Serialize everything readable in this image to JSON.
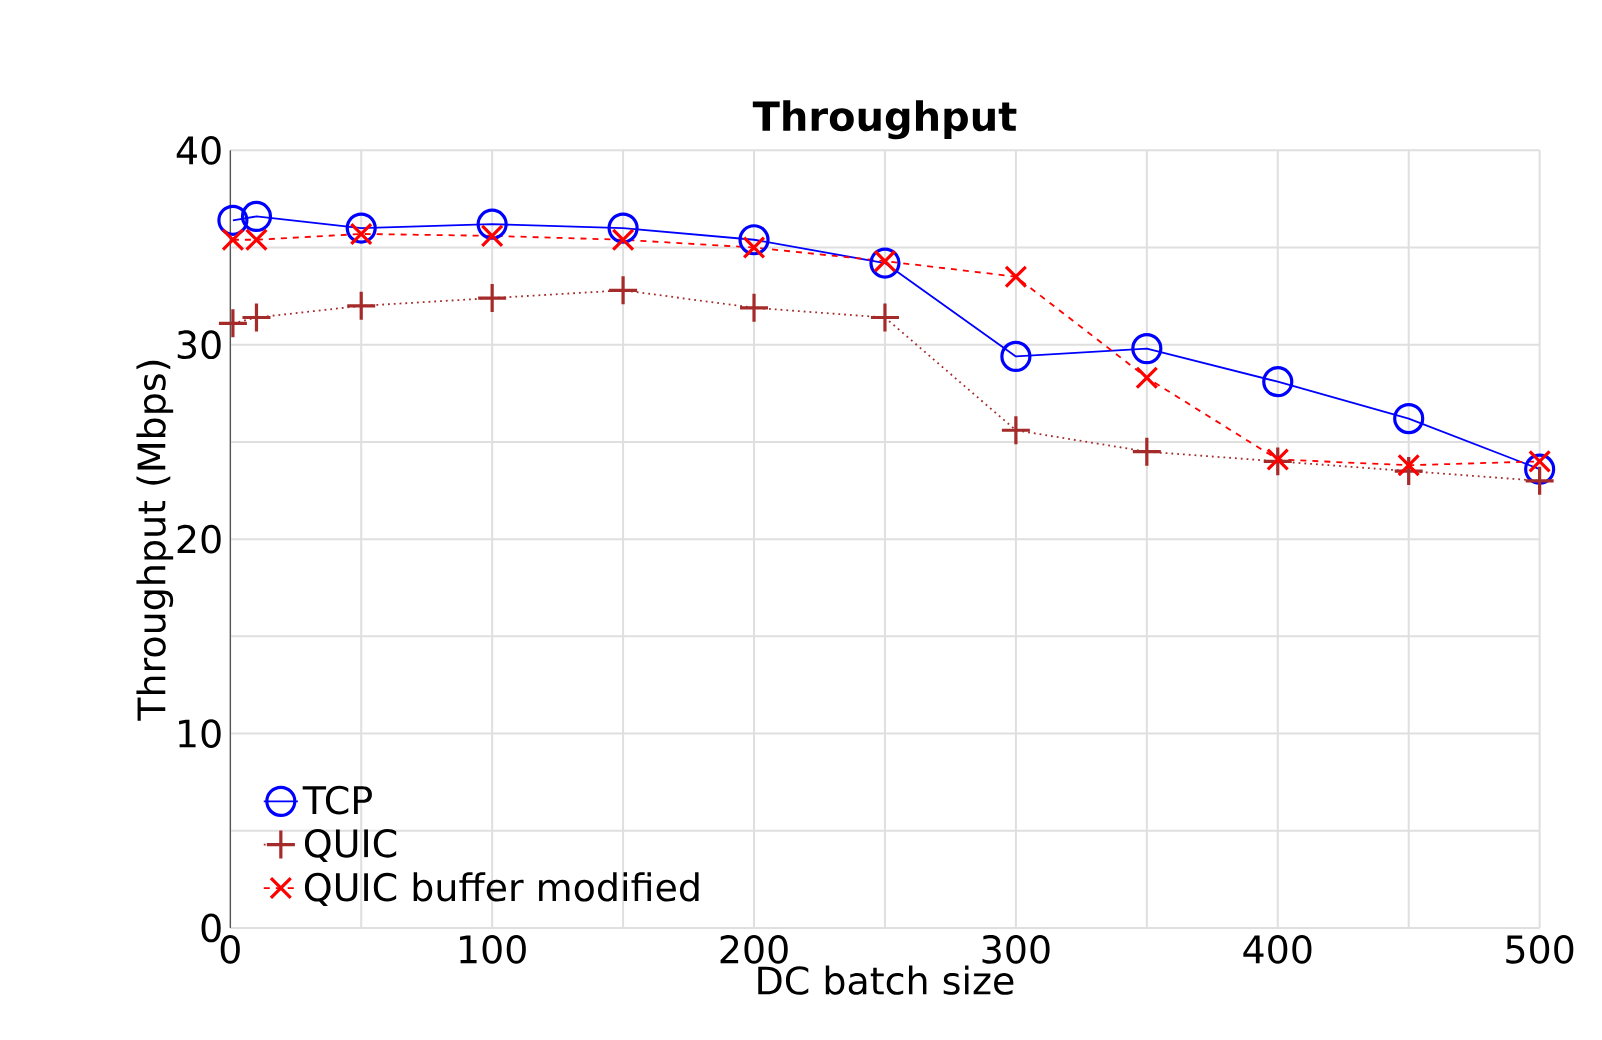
{
  "chart_data": {
    "type": "line",
    "title": "Throughput",
    "xlabel": "DC batch size",
    "ylabel": "Throughput (Mbps)",
    "xlim": [
      0,
      500
    ],
    "ylim": [
      0,
      40
    ],
    "xticks": [
      0,
      {
        "value": 50,
        "label": null
      },
      100,
      {
        "value": 150,
        "label": null
      },
      200,
      {
        "value": 250,
        "label": null
      },
      300,
      {
        "value": 350,
        "label": null
      },
      400,
      {
        "value": 450,
        "label": null
      },
      500
    ],
    "yticks": [
      0,
      {
        "value": 5,
        "label": null
      },
      10,
      {
        "value": 15,
        "label": null
      },
      20,
      {
        "value": 25,
        "label": null
      },
      30,
      {
        "value": 35,
        "label": null
      },
      40
    ],
    "grid": true,
    "legend": "bottom left",
    "x": [
      1,
      10,
      50,
      100,
      150,
      200,
      250,
      300,
      350,
      400,
      450,
      500
    ],
    "series": [
      {
        "name": "TCP",
        "color": "#0000ff",
        "marker": "circle",
        "line_style": "solid",
        "values": [
          36.4,
          36.6,
          36.0,
          36.2,
          36.0,
          35.4,
          34.2,
          29.4,
          29.8,
          28.1,
          26.2,
          23.6
        ]
      },
      {
        "name": "QUIC",
        "color": "#a52a2a",
        "marker": "plus",
        "line_style": "dotted",
        "values": [
          31.1,
          31.4,
          32.0,
          32.4,
          32.8,
          31.9,
          31.4,
          25.6,
          24.5,
          24.0,
          23.5,
          23.0
        ]
      },
      {
        "name": "QUIC buffer modified",
        "color": "#ff0000",
        "marker": "cross",
        "line_style": "dashed",
        "values": [
          35.4,
          35.4,
          35.7,
          35.6,
          35.4,
          35.0,
          34.3,
          33.5,
          28.3,
          24.1,
          23.8,
          24.0
        ]
      }
    ]
  }
}
